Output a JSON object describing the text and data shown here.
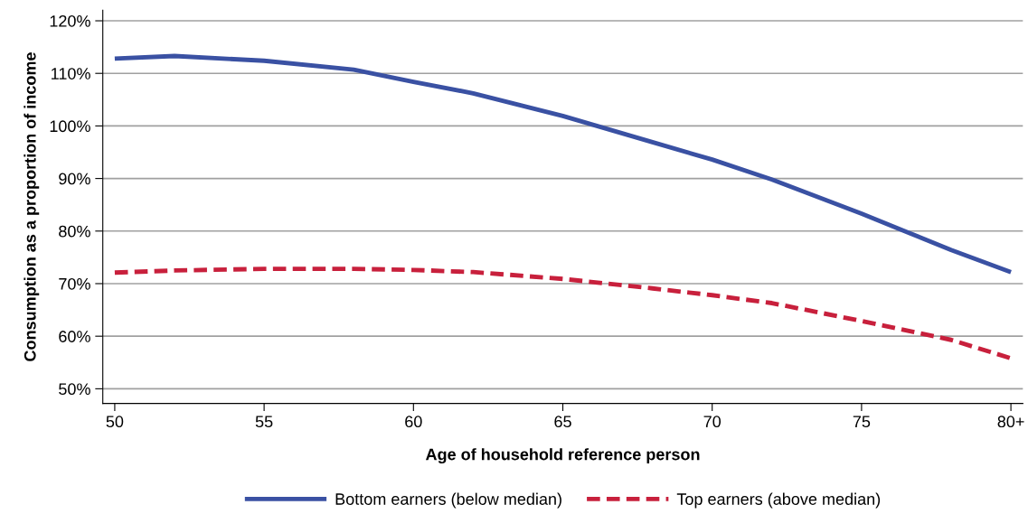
{
  "chart_data": {
    "type": "line",
    "xlabel": "Age of household reference person",
    "ylabel": "Consumption as a proportion of income",
    "x": [
      50,
      52,
      55,
      58,
      60,
      62,
      65,
      68,
      70,
      72,
      75,
      78,
      80
    ],
    "series": [
      {
        "name": "Bottom earners (below median)",
        "color": "#3a51a3",
        "line_style": "solid",
        "values": [
          112.8,
          113.3,
          112.4,
          110.7,
          108.4,
          106.2,
          101.9,
          96.9,
          93.6,
          89.8,
          83.3,
          76.4,
          72.2
        ]
      },
      {
        "name": "Top earners (above median)",
        "color": "#c8203c",
        "line_style": "dashed",
        "values": [
          72.1,
          72.5,
          72.8,
          72.8,
          72.6,
          72.2,
          70.9,
          69.1,
          67.8,
          66.3,
          62.9,
          59.3,
          55.8
        ]
      }
    ],
    "xlim": [
      49.6,
      80.4
    ],
    "xticks": [
      50,
      55,
      60,
      65,
      70,
      75,
      {
        "value": 80,
        "label": "80+"
      }
    ],
    "ylim": [
      47.2,
      122
    ],
    "yticks": [
      {
        "value": 50,
        "label": "50%"
      },
      {
        "value": 60,
        "label": "60%"
      },
      {
        "value": 70,
        "label": "70%"
      },
      {
        "value": 80,
        "label": "80%"
      },
      {
        "value": 90,
        "label": "90%"
      },
      {
        "value": 100,
        "label": "100%"
      },
      {
        "value": 110,
        "label": "110%"
      },
      {
        "value": 120,
        "label": "120%"
      }
    ],
    "grid": "y",
    "legend": "bottom",
    "marker": "none"
  }
}
